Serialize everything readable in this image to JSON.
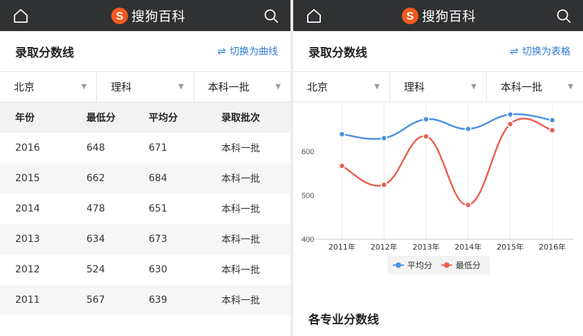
{
  "header": {
    "brand": "搜狗百科",
    "logo_letter": "S"
  },
  "score_section": {
    "title": "录取分数线",
    "switch_to_curve": "切换为曲线",
    "switch_to_table": "切换为表格"
  },
  "filters": {
    "region": "北京",
    "category": "理科",
    "batch": "本科一批"
  },
  "table": {
    "headers": [
      "年份",
      "最低分",
      "平均分",
      "录取批次"
    ],
    "rows": [
      {
        "year": "2016",
        "min": "648",
        "avg": "671",
        "batch": "本科一批"
      },
      {
        "year": "2015",
        "min": "662",
        "avg": "684",
        "batch": "本科一批"
      },
      {
        "year": "2014",
        "min": "478",
        "avg": "651",
        "batch": "本科一批"
      },
      {
        "year": "2013",
        "min": "634",
        "avg": "673",
        "batch": "本科一批"
      },
      {
        "year": "2012",
        "min": "524",
        "avg": "630",
        "batch": "本科一批"
      },
      {
        "year": "2011",
        "min": "567",
        "avg": "639",
        "batch": "本科一批"
      }
    ]
  },
  "chart_data": {
    "type": "line",
    "categories": [
      "2011年",
      "2012年",
      "2013年",
      "2014年",
      "2015年",
      "2016年"
    ],
    "series": [
      {
        "name": "平均分",
        "color": "#4a90e2",
        "values": [
          639,
          630,
          673,
          651,
          684,
          671
        ]
      },
      {
        "name": "最低分",
        "color": "#e9604f",
        "values": [
          567,
          524,
          634,
          478,
          662,
          648
        ]
      }
    ],
    "yticks": [
      400,
      500,
      600
    ],
    "ylim": [
      400,
      710
    ],
    "smooth": true,
    "grid": "vertical",
    "legend": "bottom-center"
  },
  "major_section": {
    "title": "各专业分数线"
  },
  "colors": {
    "topbar": "#2f3133",
    "accent": "#2f7bd6",
    "logo_orange": "#f25a1e"
  }
}
